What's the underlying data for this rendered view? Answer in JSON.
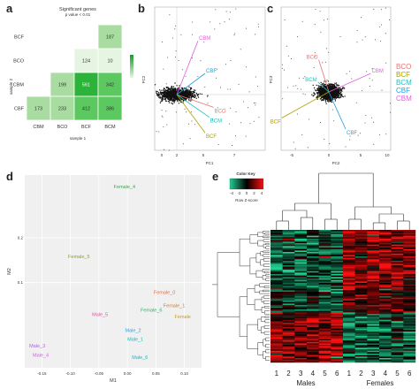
{
  "panels": {
    "a": "a",
    "b": "b",
    "c": "c",
    "d": "d",
    "e": "e"
  },
  "chart_data": [
    {
      "type": "table",
      "panel": "a",
      "title": "Significant genes",
      "subtitle": "p value < 0.01",
      "row_labels": [
        "BCF",
        "BCO",
        "CBM",
        "CBF"
      ],
      "col_labels": [
        "CBM",
        "BCO",
        "BCF",
        "BCM"
      ],
      "ylabel": "sample 2",
      "xlabel": "sample 1",
      "cells": [
        {
          "row": 0,
          "col": 3,
          "value": 187
        },
        {
          "row": 1,
          "col": 2,
          "value": 124
        },
        {
          "row": 1,
          "col": 3,
          "value": 10
        },
        {
          "row": 2,
          "col": 1,
          "value": 199
        },
        {
          "row": 2,
          "col": 2,
          "value": 561
        },
        {
          "row": 2,
          "col": 3,
          "value": 342
        },
        {
          "row": 3,
          "col": 0,
          "value": 173
        },
        {
          "row": 3,
          "col": 1,
          "value": 233
        },
        {
          "row": 3,
          "col": 2,
          "value": 412
        },
        {
          "row": 3,
          "col": 3,
          "value": 386
        }
      ],
      "colors": {
        "low": "#e6f5e2",
        "mid": "#a8dca0",
        "high": "#2bb33a",
        "max": "#1a9a2a"
      }
    },
    {
      "type": "scatter",
      "panel": "b",
      "xlabel": "PC1",
      "ylabel": "PC2",
      "x_ticks": [
        "0",
        "2",
        "5",
        "7"
      ],
      "arrows": [
        {
          "label": "CBM",
          "x": 1.5,
          "y": 3.8,
          "color": "#e060e0"
        },
        {
          "label": "CBF",
          "x": 2.0,
          "y": 1.5,
          "color": "#20a0e0"
        },
        {
          "label": "BCO",
          "x": 2.6,
          "y": -0.9,
          "color": "#f07070"
        },
        {
          "label": "BCM",
          "x": 2.3,
          "y": -1.6,
          "color": "#20c0c0"
        },
        {
          "label": "BCF",
          "x": 2.0,
          "y": -2.7,
          "color": "#b0a000"
        }
      ]
    },
    {
      "type": "scatter",
      "panel": "c",
      "xlabel": "PC2",
      "ylabel": "PC3",
      "x_ticks": [
        "-5",
        "0",
        "5",
        "10"
      ],
      "arrows": [
        {
          "label": "BCO",
          "x": -1.2,
          "y": 2.6,
          "color": "#f07070"
        },
        {
          "label": "CBM",
          "x": 5.0,
          "y": 1.5,
          "color": "#e060e0"
        },
        {
          "label": "BCM",
          "x": -1.3,
          "y": 0.8,
          "color": "#20c0c0"
        },
        {
          "label": "BCF",
          "x": -5.6,
          "y": -2.1,
          "color": "#b0a000"
        },
        {
          "label": "CBF",
          "x": 2.0,
          "y": -3.0,
          "color": "#20a0e0"
        }
      ],
      "legend": [
        {
          "name": "BCO",
          "color": "#f07070"
        },
        {
          "name": "BCF",
          "color": "#b0a000"
        },
        {
          "name": "BCM",
          "color": "#20c0c0"
        },
        {
          "name": "CBF",
          "color": "#20a0e0"
        },
        {
          "name": "CBM",
          "color": "#e060e0"
        }
      ],
      "legend_position": "right"
    },
    {
      "type": "scatter",
      "panel": "d",
      "xlabel": "M1",
      "ylabel": "M2",
      "x_ticks": [
        "-0.15",
        "-0.10",
        "-0.05",
        "0.00",
        "0.05",
        "0.10"
      ],
      "y_ticks": [
        "0.2",
        "0.1"
      ],
      "xlim": [
        -0.18,
        0.13
      ],
      "ylim": [
        -0.09,
        0.34
      ],
      "points": [
        {
          "label": "Female_4",
          "x": -0.005,
          "y": 0.31,
          "color": "#30b040"
        },
        {
          "label": "Female_5",
          "x": -0.085,
          "y": 0.155,
          "color": "#90a020"
        },
        {
          "label": "Female_0",
          "x": 0.065,
          "y": 0.075,
          "color": "#e07050"
        },
        {
          "label": "Female_1",
          "x": 0.082,
          "y": 0.045,
          "color": "#d08020"
        },
        {
          "label": "Female_6",
          "x": 0.042,
          "y": 0.035,
          "color": "#30b070"
        },
        {
          "label": "Female",
          "x": 0.097,
          "y": 0.02,
          "color": "#c0a020"
        },
        {
          "label": "Male_5",
          "x": -0.048,
          "y": 0.025,
          "color": "#e050a0"
        },
        {
          "label": "Male_2",
          "x": 0.01,
          "y": -0.01,
          "color": "#30a0e0"
        },
        {
          "label": "Male_1",
          "x": 0.014,
          "y": -0.03,
          "color": "#20b0c0"
        },
        {
          "label": "Male_3",
          "x": -0.158,
          "y": -0.045,
          "color": "#b060e0"
        },
        {
          "label": "Male_4",
          "x": -0.152,
          "y": -0.065,
          "color": "#d060e0"
        },
        {
          "label": "Male_6",
          "x": 0.022,
          "y": -0.07,
          "color": "#20b0c0"
        }
      ]
    },
    {
      "type": "heatmap",
      "panel": "e",
      "legend_title": "Color Key",
      "legend_xlabel": "Row Z-score",
      "legend_ticks": [
        "-4",
        "-2",
        "0",
        "2",
        "4"
      ],
      "columns": [
        "1",
        "2",
        "3",
        "4",
        "5",
        "6",
        "1",
        "2",
        "3",
        "4",
        "5",
        "6"
      ],
      "groups": [
        "Males",
        "Females"
      ],
      "colors": {
        "low": "#20d090",
        "mid": "#000000",
        "high": "#ff1010"
      }
    }
  ]
}
